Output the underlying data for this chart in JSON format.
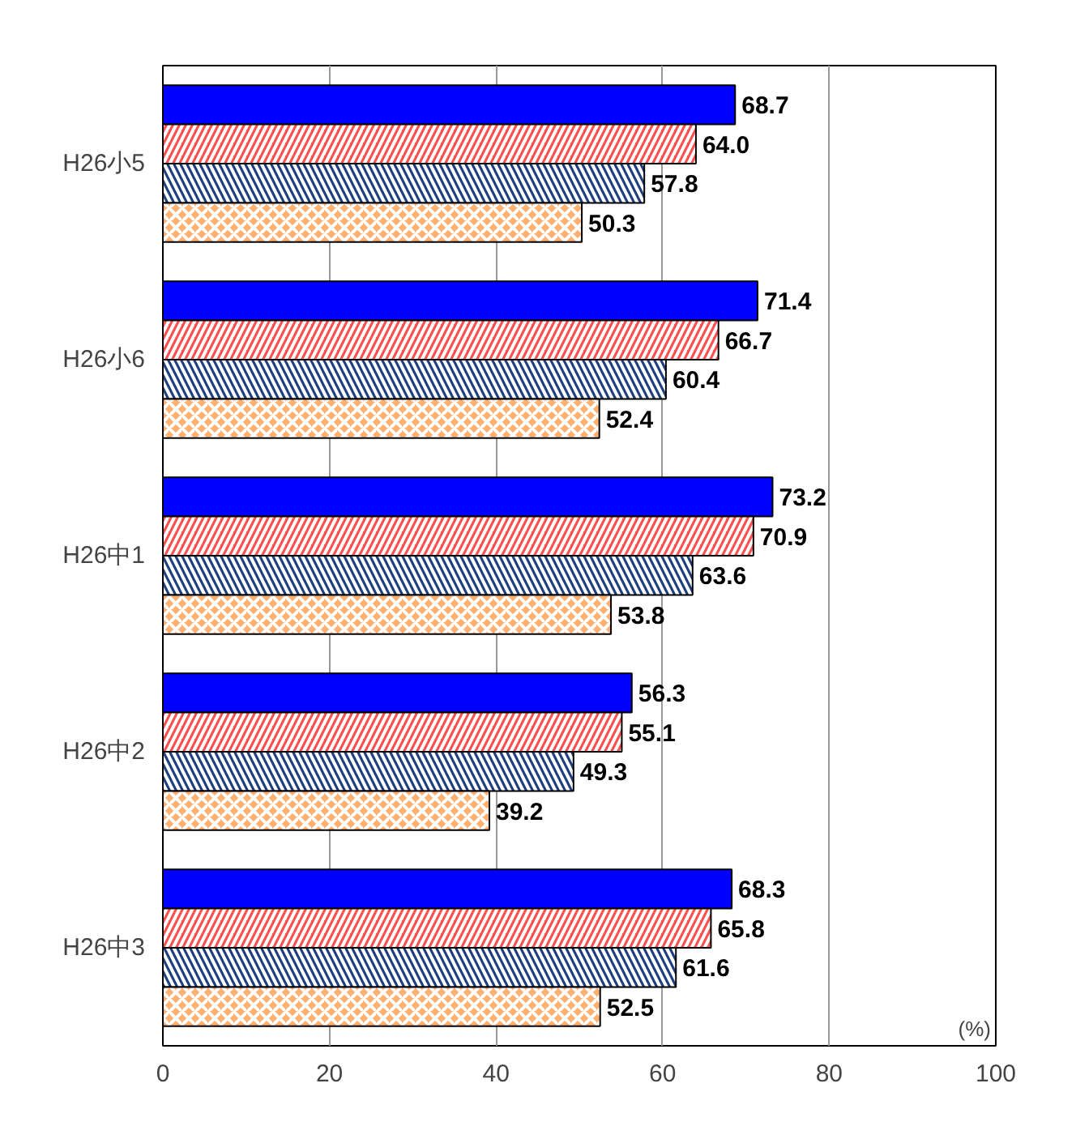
{
  "chart_data": {
    "type": "bar",
    "orientation": "horizontal",
    "categories": [
      "H26小5",
      "H26小6",
      "H26中1",
      "H26中2",
      "H26中3"
    ],
    "series": [
      {
        "color": "#0000ff",
        "values": [
          68.7,
          71.4,
          73.2,
          56.3,
          68.3
        ],
        "value_labels": [
          "68.7",
          "71.4",
          "73.2",
          "56.3",
          "68.3"
        ]
      },
      {
        "color": "#ff5050",
        "values": [
          64.0,
          66.7,
          70.9,
          55.1,
          65.8
        ],
        "value_labels": [
          "64.0",
          "66.7",
          "70.9",
          "55.1",
          "65.8"
        ]
      },
      {
        "color": "#1f3f7f",
        "values": [
          57.8,
          60.4,
          63.6,
          49.3,
          61.6
        ],
        "value_labels": [
          "57.8",
          "60.4",
          "63.6",
          "49.3",
          "61.6"
        ]
      },
      {
        "color": "#ffb070",
        "values": [
          50.3,
          52.4,
          53.8,
          39.2,
          52.5
        ],
        "value_labels": [
          "50.3",
          "52.4",
          "53.8",
          "39.2",
          "52.5"
        ]
      }
    ],
    "xlim": [
      0,
      100
    ],
    "xticks": [
      0,
      20,
      40,
      60,
      80,
      100
    ],
    "grid": "x",
    "annotations": [
      "(%)"
    ]
  }
}
